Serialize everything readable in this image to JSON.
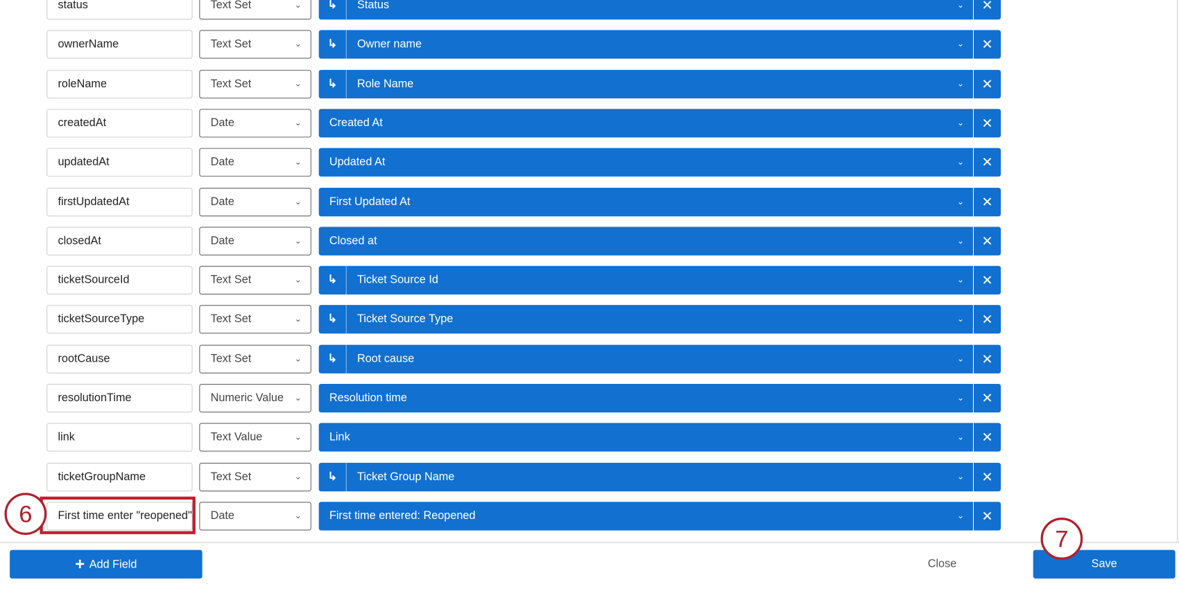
{
  "fields": [
    {
      "name": "status",
      "type": "Text Set",
      "mapping": "Status",
      "sub": true
    },
    {
      "name": "ownerName",
      "type": "Text Set",
      "mapping": "Owner name",
      "sub": true
    },
    {
      "name": "roleName",
      "type": "Text Set",
      "mapping": "Role Name",
      "sub": true
    },
    {
      "name": "createdAt",
      "type": "Date",
      "mapping": "Created At",
      "sub": false
    },
    {
      "name": "updatedAt",
      "type": "Date",
      "mapping": "Updated At",
      "sub": false
    },
    {
      "name": "firstUpdatedAt",
      "type": "Date",
      "mapping": "First Updated At",
      "sub": false
    },
    {
      "name": "closedAt",
      "type": "Date",
      "mapping": "Closed at",
      "sub": false
    },
    {
      "name": "ticketSourceId",
      "type": "Text Set",
      "mapping": "Ticket Source Id",
      "sub": true
    },
    {
      "name": "ticketSourceType",
      "type": "Text Set",
      "mapping": "Ticket Source Type",
      "sub": true
    },
    {
      "name": "rootCause",
      "type": "Text Set",
      "mapping": "Root cause",
      "sub": true
    },
    {
      "name": "resolutionTime",
      "type": "Numeric Value",
      "mapping": "Resolution time",
      "sub": false
    },
    {
      "name": "link",
      "type": "Text Value",
      "mapping": "Link",
      "sub": false
    },
    {
      "name": "ticketGroupName",
      "type": "Text Set",
      "mapping": "Ticket Group Name",
      "sub": true
    },
    {
      "name": "First time enter \"reopened\"",
      "type": "Date",
      "mapping": "First time entered: Reopened",
      "sub": false
    }
  ],
  "footer": {
    "add_field": "Add Field",
    "close": "Close",
    "save": "Save"
  },
  "annotations": {
    "step6": "6",
    "step7": "7"
  },
  "colors": {
    "accent": "#1170d0",
    "annotation": "#c0202f"
  },
  "icons": {
    "sub": "arrow-return-icon",
    "chevron": "chevron-down-icon",
    "remove": "close-icon",
    "add": "plus-icon"
  }
}
